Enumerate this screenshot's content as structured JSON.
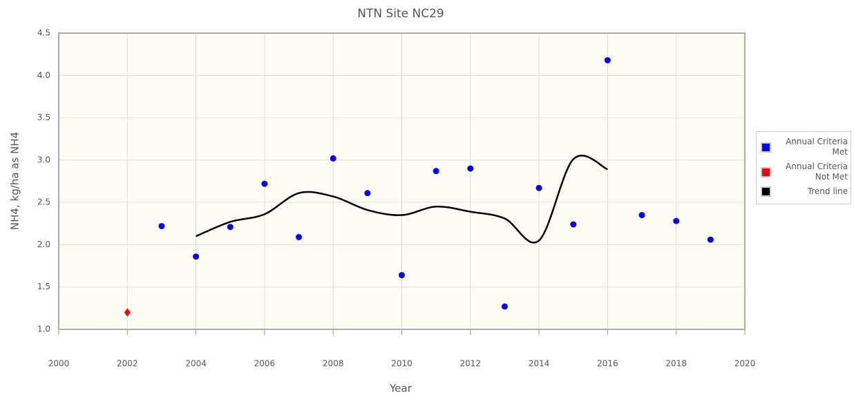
{
  "chart_data": {
    "type": "scatter",
    "title": "NTN Site NC29",
    "x_label": "Year",
    "y_label": "NH4, kg/ha as NH4",
    "xlim": [
      2000,
      2020
    ],
    "xticks": [
      2000,
      2002,
      2004,
      2006,
      2008,
      2010,
      2012,
      2014,
      2016,
      2018,
      2020
    ],
    "ylim": [
      1.0,
      4.5
    ],
    "yticks": [
      {
        "value": 1.0,
        "label": "1.0"
      },
      1.5,
      {
        "value": 2.0,
        "label": "2.0"
      },
      2.5,
      {
        "value": 3.0,
        "label": "3.0"
      },
      3.5,
      {
        "value": 4.0,
        "label": "4.0"
      },
      4.5
    ],
    "grid": true,
    "legend": "right",
    "series": [
      {
        "name": "Annual Criteria Met",
        "color": "#0000ff",
        "marker": "circle",
        "x": [
          2003,
          2004,
          2005,
          2006,
          2007,
          2008,
          2009,
          2010,
          2011,
          2012,
          2013,
          2014,
          2015,
          2016,
          2017,
          2018,
          2019
        ],
        "values": [
          2.22,
          1.86,
          2.21,
          2.72,
          2.09,
          3.02,
          2.61,
          1.64,
          2.87,
          2.9,
          1.27,
          2.67,
          2.24,
          4.18,
          2.35,
          2.28,
          2.06
        ]
      },
      {
        "name": "Annual Criteria Not Met",
        "color": "#ff0000",
        "marker": "diamond",
        "x": [
          2002
        ],
        "values": [
          1.2
        ]
      },
      {
        "name": "Trend line",
        "color": "#000000",
        "marker": "line",
        "x": [
          2004,
          2005,
          2006,
          2007,
          2008,
          2009,
          2010,
          2011,
          2012,
          2013,
          2014,
          2015,
          2016
        ],
        "values": [
          2.1,
          2.27,
          2.36,
          2.61,
          2.57,
          2.41,
          2.35,
          2.45,
          2.39,
          2.31,
          2.05,
          3.01,
          2.89
        ]
      }
    ]
  }
}
